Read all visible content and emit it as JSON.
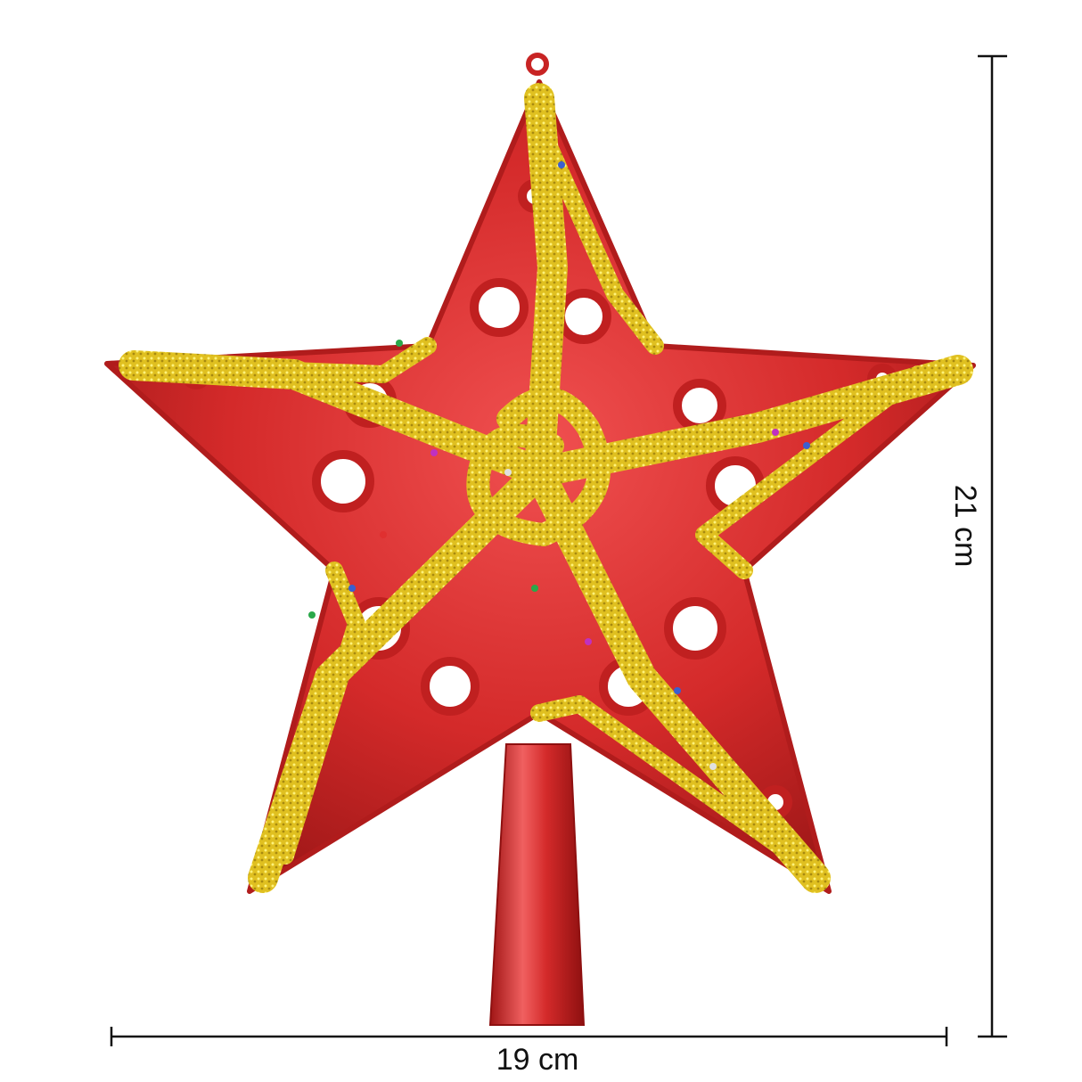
{
  "product": {
    "subject": "star-tree-topper",
    "colors": {
      "body": "#d42a2a",
      "body_dark": "#9e1414",
      "glitter": "#e0c020",
      "glitter_dark": "#b8960e"
    }
  },
  "dimensions": {
    "height_label": "21 cm",
    "width_label": "19 cm",
    "line_color": "#111111"
  }
}
